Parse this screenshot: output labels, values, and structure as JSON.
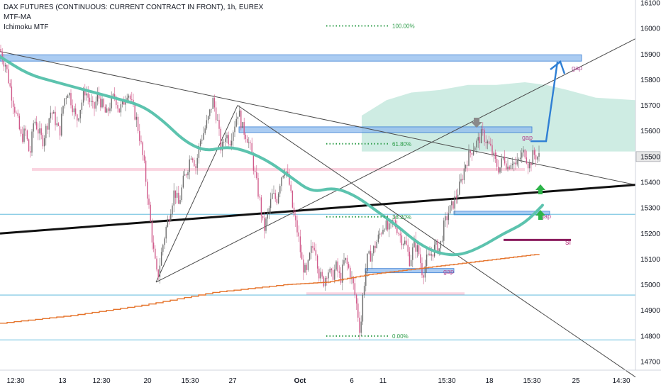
{
  "legend": {
    "title": "DAX FUTURES (CONTINUOUS: CURRENT CONTRACT IN FRONT), 1h, EUREX",
    "indicator1": "MTF-MA",
    "indicator2": "Ichimoku MTF"
  },
  "chart_data": {
    "type": "candlestick",
    "title": "DAX FUTURES (CONTINUOUS: CURRENT CONTRACT IN FRONT), 1h, EUREX",
    "ylim": [
      14610,
      16140
    ],
    "y_ticks": [
      14700,
      14800,
      14900,
      15000,
      15100,
      15200,
      15300,
      15400,
      15500,
      15600,
      15700,
      15800,
      15900,
      16000,
      16100
    ],
    "x_ticks": [
      "12:30",
      "13",
      "12:30",
      "20",
      "15:30",
      "27",
      "Oct",
      "6",
      "11",
      "15:30",
      "18",
      "15:30",
      "25",
      "14:30"
    ],
    "x_ticks_bold": [
      "Oct"
    ],
    "last_price": "15500",
    "fib_levels": [
      {
        "label": "100.00%",
        "value": 16010
      },
      {
        "label": "61.80%",
        "value": 15550
      },
      {
        "label": "38.20%",
        "value": 15265
      },
      {
        "label": "0.00%",
        "value": 14800
      }
    ],
    "annotations": {
      "gap_top": "gap",
      "gap_mid": "gap",
      "gap_right": "gap",
      "gap_low": "gap",
      "stop_loss": "sl"
    },
    "horizontal_levels": [
      15885,
      15605,
      15450,
      15275,
      15280,
      15055,
      14960,
      14785
    ],
    "price_path": [
      [
        0,
        15920
      ],
      [
        4,
        15880
      ],
      [
        8,
        15860
      ],
      [
        12,
        15800
      ],
      [
        18,
        15720
      ],
      [
        24,
        15650
      ],
      [
        30,
        15570
      ],
      [
        36,
        15600
      ],
      [
        42,
        15500
      ],
      [
        48,
        15650
      ],
      [
        54,
        15600
      ],
      [
        60,
        15560
      ],
      [
        66,
        15620
      ],
      [
        72,
        15680
      ],
      [
        78,
        15640
      ],
      [
        84,
        15590
      ],
      [
        90,
        15720
      ],
      [
        96,
        15760
      ],
      [
        102,
        15700
      ],
      [
        108,
        15640
      ],
      [
        114,
        15700
      ],
      [
        120,
        15760
      ],
      [
        126,
        15720
      ],
      [
        132,
        15680
      ],
      [
        138,
        15740
      ],
      [
        144,
        15700
      ],
      [
        150,
        15660
      ],
      [
        156,
        15710
      ],
      [
        162,
        15740
      ],
      [
        168,
        15680
      ],
      [
        174,
        15710
      ],
      [
        180,
        15760
      ],
      [
        186,
        15700
      ],
      [
        192,
        15650
      ],
      [
        198,
        15560
      ],
      [
        204,
        15450
      ],
      [
        210,
        15300
      ],
      [
        216,
        15140
      ],
      [
        222,
        15020
      ],
      [
        228,
        15130
      ],
      [
        234,
        15220
      ],
      [
        240,
        15290
      ],
      [
        246,
        15370
      ],
      [
        252,
        15310
      ],
      [
        258,
        15400
      ],
      [
        264,
        15450
      ],
      [
        270,
        15520
      ],
      [
        276,
        15460
      ],
      [
        282,
        15560
      ],
      [
        288,
        15600
      ],
      [
        294,
        15650
      ],
      [
        300,
        15720
      ],
      [
        306,
        15650
      ],
      [
        312,
        15520
      ],
      [
        318,
        15590
      ],
      [
        324,
        15560
      ],
      [
        330,
        15620
      ],
      [
        336,
        15680
      ],
      [
        342,
        15610
      ],
      [
        348,
        15580
      ],
      [
        354,
        15520
      ],
      [
        360,
        15420
      ],
      [
        366,
        15330
      ],
      [
        372,
        15210
      ],
      [
        378,
        15280
      ],
      [
        384,
        15350
      ],
      [
        390,
        15330
      ],
      [
        396,
        15420
      ],
      [
        402,
        15460
      ],
      [
        408,
        15390
      ],
      [
        414,
        15270
      ],
      [
        420,
        15200
      ],
      [
        426,
        15080
      ],
      [
        432,
        15040
      ],
      [
        438,
        15130
      ],
      [
        444,
        15160
      ],
      [
        450,
        15040
      ],
      [
        456,
        15010
      ],
      [
        462,
        15060
      ],
      [
        468,
        15030
      ],
      [
        474,
        15070
      ],
      [
        480,
        15020
      ],
      [
        486,
        15100
      ],
      [
        492,
        15060
      ],
      [
        498,
        15000
      ],
      [
        504,
        14900
      ],
      [
        508,
        14810
      ],
      [
        512,
        14980
      ],
      [
        518,
        15100
      ],
      [
        524,
        15120
      ],
      [
        530,
        15160
      ],
      [
        536,
        15200
      ],
      [
        542,
        15240
      ],
      [
        548,
        15210
      ],
      [
        554,
        15250
      ],
      [
        560,
        15220
      ],
      [
        566,
        15180
      ],
      [
        572,
        15160
      ],
      [
        578,
        15090
      ],
      [
        584,
        15160
      ],
      [
        590,
        15130
      ],
      [
        596,
        15040
      ],
      [
        602,
        15100
      ],
      [
        608,
        15120
      ],
      [
        614,
        15150
      ],
      [
        620,
        15140
      ],
      [
        626,
        15230
      ],
      [
        632,
        15280
      ],
      [
        638,
        15310
      ],
      [
        644,
        15350
      ],
      [
        650,
        15400
      ],
      [
        656,
        15470
      ],
      [
        662,
        15510
      ],
      [
        668,
        15540
      ],
      [
        674,
        15560
      ],
      [
        680,
        15590
      ],
      [
        686,
        15560
      ],
      [
        692,
        15530
      ],
      [
        698,
        15480
      ],
      [
        704,
        15450
      ],
      [
        710,
        15500
      ],
      [
        716,
        15460
      ],
      [
        722,
        15490
      ],
      [
        728,
        15460
      ],
      [
        734,
        15500
      ],
      [
        740,
        15520
      ],
      [
        746,
        15460
      ],
      [
        752,
        15510
      ],
      [
        758,
        15500
      ],
      [
        762,
        15500
      ]
    ],
    "ma_path": [
      [
        0,
        15890
      ],
      [
        40,
        15820
      ],
      [
        80,
        15790
      ],
      [
        120,
        15760
      ],
      [
        160,
        15730
      ],
      [
        200,
        15700
      ],
      [
        230,
        15640
      ],
      [
        260,
        15560
      ],
      [
        290,
        15520
      ],
      [
        320,
        15540
      ],
      [
        350,
        15520
      ],
      [
        380,
        15480
      ],
      [
        410,
        15420
      ],
      [
        440,
        15360
      ],
      [
        470,
        15380
      ],
      [
        500,
        15350
      ],
      [
        530,
        15290
      ],
      [
        560,
        15230
      ],
      [
        590,
        15160
      ],
      [
        620,
        15120
      ],
      [
        650,
        15115
      ],
      [
        680,
        15150
      ],
      [
        710,
        15200
      ],
      [
        740,
        15240
      ],
      [
        765,
        15310
      ]
    ],
    "stair_path": [
      [
        0,
        14850
      ],
      [
        100,
        14880
      ],
      [
        200,
        14920
      ],
      [
        300,
        14970
      ],
      [
        400,
        15000
      ],
      [
        460,
        15010
      ],
      [
        520,
        15040
      ],
      [
        580,
        15060
      ],
      [
        640,
        15080
      ],
      [
        700,
        15100
      ],
      [
        760,
        15120
      ]
    ],
    "cloud_top": [
      [
        510,
        15660
      ],
      [
        545,
        15720
      ],
      [
        580,
        15750
      ],
      [
        620,
        15760
      ],
      [
        660,
        15780
      ],
      [
        700,
        15780
      ],
      [
        740,
        15790
      ],
      [
        770,
        15780
      ],
      [
        800,
        15760
      ],
      [
        840,
        15730
      ],
      [
        896,
        15720
      ]
    ],
    "cloud_bottom": [
      [
        510,
        15520
      ],
      [
        896,
        15520
      ]
    ]
  }
}
